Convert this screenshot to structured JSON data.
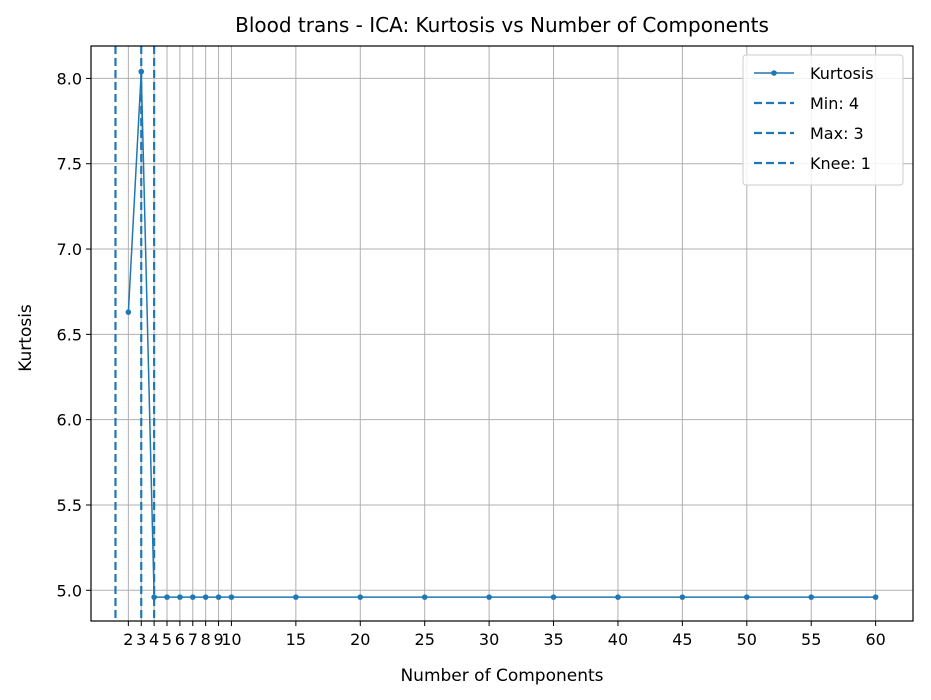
{
  "chart_data": {
    "type": "line",
    "title": "Blood trans - ICA: Kurtosis vs Number of Components",
    "xlabel": "Number of Components",
    "ylabel": "Kurtosis",
    "x": [
      2,
      3,
      4,
      5,
      6,
      7,
      8,
      9,
      10,
      15,
      20,
      25,
      30,
      35,
      40,
      45,
      50,
      55,
      60
    ],
    "xticks": [
      2,
      3,
      4,
      5,
      6,
      7,
      8,
      9,
      10,
      15,
      20,
      25,
      30,
      35,
      40,
      45,
      50,
      55,
      60
    ],
    "xtick_labels": [
      "2",
      "3",
      "4",
      "5",
      "6",
      "7",
      "8",
      "9",
      "10",
      "15",
      "20",
      "25",
      "30",
      "35",
      "40",
      "45",
      "50",
      "55",
      "60"
    ],
    "yticks": [
      5.0,
      5.5,
      6.0,
      6.5,
      7.0,
      7.5,
      8.0
    ],
    "ytick_labels": [
      "5.0",
      "5.5",
      "6.0",
      "6.5",
      "7.0",
      "7.5",
      "8.0"
    ],
    "xlim": [
      -0.9,
      62.9
    ],
    "ylim": [
      4.82,
      8.19
    ],
    "grid": true,
    "legend_position": "top-right",
    "series": [
      {
        "name": "Kurtosis",
        "color": "#1f77b4",
        "values": [
          6.63,
          8.04,
          4.96,
          4.96,
          4.96,
          4.96,
          4.96,
          4.96,
          4.96,
          4.96,
          4.96,
          4.96,
          4.96,
          4.96,
          4.96,
          4.96,
          4.96,
          4.96,
          4.96
        ]
      }
    ],
    "vlines": [
      {
        "name": "Min: 4",
        "x": 4,
        "color": "#1f77b4"
      },
      {
        "name": "Max: 3",
        "x": 3,
        "color": "#1f77b4"
      },
      {
        "name": "Knee: 1",
        "x": 1,
        "color": "#1f77b4"
      }
    ]
  }
}
